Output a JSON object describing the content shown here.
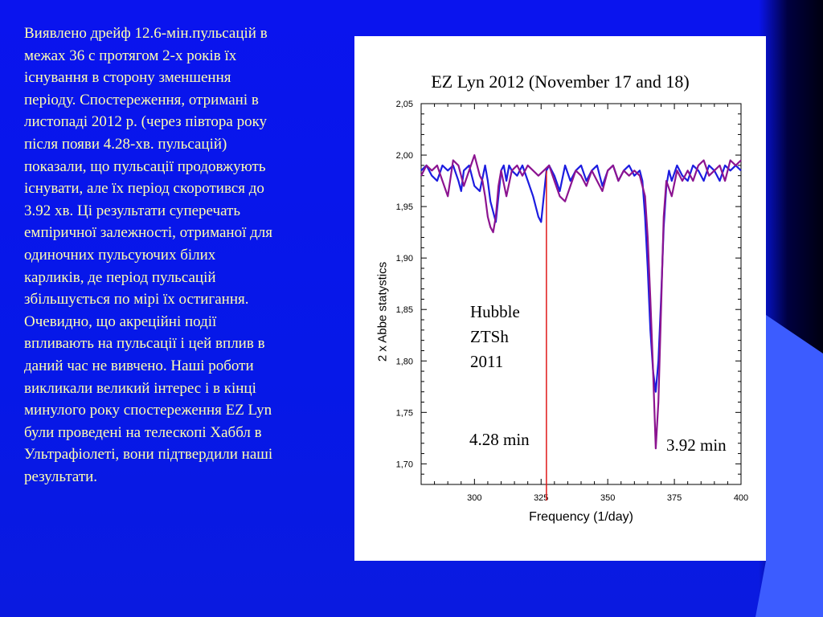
{
  "slide": {
    "paragraph_lines": [
      "Виявлено дрейф 12.6-мін.пульсацій в",
      "межах 36 с протягом 2-х років їх",
      "існування в сторону зменшення",
      "періоду. Спостереження, отримані в",
      "листопаді 2012 р. (через півтора року",
      "після появи 4.28-хв. пульсацій)",
      "показали, що пульсації продовжують",
      "існувати, але їх період скоротився до",
      "3.92 хв. Ці результати суперечать",
      "емпіричної залежності, отриманої для",
      "одиночних пульсуючих білих",
      "карликів, де період пульсацій",
      "збільшується по мірі їх остигання.",
      "Очевидно, що акреційні події",
      "впливають на пульсації і цей вплив в",
      "даний час не вивчено. Наші роботи",
      "викликали великий інтерес і в кінці",
      "минулого року спостереження EZ Lyn",
      "були проведені на телескопі Хаббл в",
      "Ультрафіолеті, вони підтвердили наші",
      "результати."
    ],
    "text_color": "#ffffb0",
    "background_color": "#0a14ee"
  },
  "chart_data": {
    "type": "line",
    "title": "EZ Lyn 2012 (November 17 and 18)",
    "xlabel": "Frequency (1/day)",
    "ylabel": "2 x Abbe statystics",
    "xlim": [
      280,
      400
    ],
    "ylim": [
      1.68,
      2.05
    ],
    "x_ticks": [
      300,
      325,
      350,
      375,
      400
    ],
    "x_tick_labels": [
      "300",
      "325",
      "350",
      "375",
      "400"
    ],
    "y_ticks": [
      1.7,
      1.75,
      1.8,
      1.85,
      1.9,
      1.95,
      2.0,
      2.05
    ],
    "y_tick_labels": [
      "1,70",
      "1,75",
      "1,80",
      "1,85",
      "1,90",
      "1,95",
      "2,00",
      "2,05"
    ],
    "grid": false,
    "series": [
      {
        "color": "#1c1ce0",
        "x": [
          280,
          282,
          284,
          286,
          288,
          290,
          292,
          294,
          295,
          296,
          298,
          300,
          302,
          304,
          305,
          306,
          307,
          308,
          309,
          310,
          311,
          312,
          313,
          314,
          316,
          318,
          320,
          322,
          323,
          324,
          325,
          326,
          327,
          328,
          330,
          332,
          334,
          336,
          338,
          340,
          342,
          344,
          346,
          348,
          350,
          352,
          354,
          356,
          358,
          360,
          362,
          363,
          364,
          365,
          366,
          367,
          368,
          369,
          370,
          371,
          372,
          373,
          374,
          376,
          378,
          380,
          382,
          384,
          386,
          388,
          390,
          392,
          394,
          396,
          398,
          400
        ],
        "y": [
          1.985,
          1.99,
          1.98,
          1.975,
          1.99,
          1.985,
          1.99,
          1.975,
          1.965,
          1.985,
          1.99,
          1.97,
          1.965,
          1.99,
          1.975,
          1.955,
          1.945,
          1.935,
          1.96,
          1.985,
          1.99,
          1.975,
          1.99,
          1.985,
          1.98,
          1.99,
          1.975,
          1.96,
          1.95,
          1.94,
          1.935,
          1.96,
          1.985,
          1.99,
          1.98,
          1.965,
          1.99,
          1.975,
          1.985,
          1.99,
          1.975,
          1.985,
          1.99,
          1.97,
          1.985,
          1.99,
          1.975,
          1.985,
          1.99,
          1.98,
          1.985,
          1.975,
          1.94,
          1.89,
          1.83,
          1.79,
          1.77,
          1.8,
          1.86,
          1.93,
          1.97,
          1.985,
          1.975,
          1.99,
          1.98,
          1.975,
          1.99,
          1.985,
          1.975,
          1.99,
          1.985,
          1.975,
          1.99,
          1.985,
          1.99,
          1.985
        ]
      },
      {
        "color": "#8c1490",
        "x": [
          280,
          282,
          284,
          286,
          288,
          290,
          292,
          294,
          296,
          298,
          300,
          302,
          303,
          304,
          305,
          306,
          307,
          308,
          309,
          310,
          312,
          314,
          316,
          318,
          320,
          322,
          324,
          326,
          328,
          330,
          332,
          334,
          336,
          338,
          340,
          342,
          344,
          346,
          348,
          350,
          352,
          354,
          356,
          358,
          360,
          362,
          364,
          365,
          366,
          367,
          368,
          369,
          370,
          371,
          372,
          374,
          376,
          378,
          380,
          382,
          384,
          386,
          388,
          390,
          392,
          394,
          396,
          398,
          400
        ],
        "y": [
          1.98,
          1.99,
          1.985,
          1.99,
          1.975,
          1.96,
          1.995,
          1.99,
          1.97,
          1.985,
          2.0,
          1.98,
          1.975,
          1.96,
          1.94,
          1.93,
          1.925,
          1.94,
          1.97,
          1.985,
          1.96,
          1.985,
          1.99,
          1.98,
          1.99,
          1.985,
          1.98,
          1.985,
          1.99,
          1.975,
          1.96,
          1.955,
          1.97,
          1.985,
          1.98,
          1.97,
          1.985,
          1.975,
          1.965,
          1.985,
          1.99,
          1.975,
          1.985,
          1.98,
          1.985,
          1.98,
          1.96,
          1.92,
          1.86,
          1.79,
          1.715,
          1.76,
          1.85,
          1.94,
          1.975,
          1.96,
          1.985,
          1.975,
          1.985,
          1.975,
          1.99,
          1.995,
          1.98,
          1.985,
          1.99,
          1.975,
          1.995,
          1.99,
          1.995
        ]
      }
    ],
    "marker_line": {
      "x": 327,
      "color": "#e01818"
    },
    "annotations": {
      "hubble": [
        "Hubble",
        "ZTSh",
        "2011"
      ],
      "left_period": "4.28 min",
      "right_period": "3.92 min"
    }
  }
}
